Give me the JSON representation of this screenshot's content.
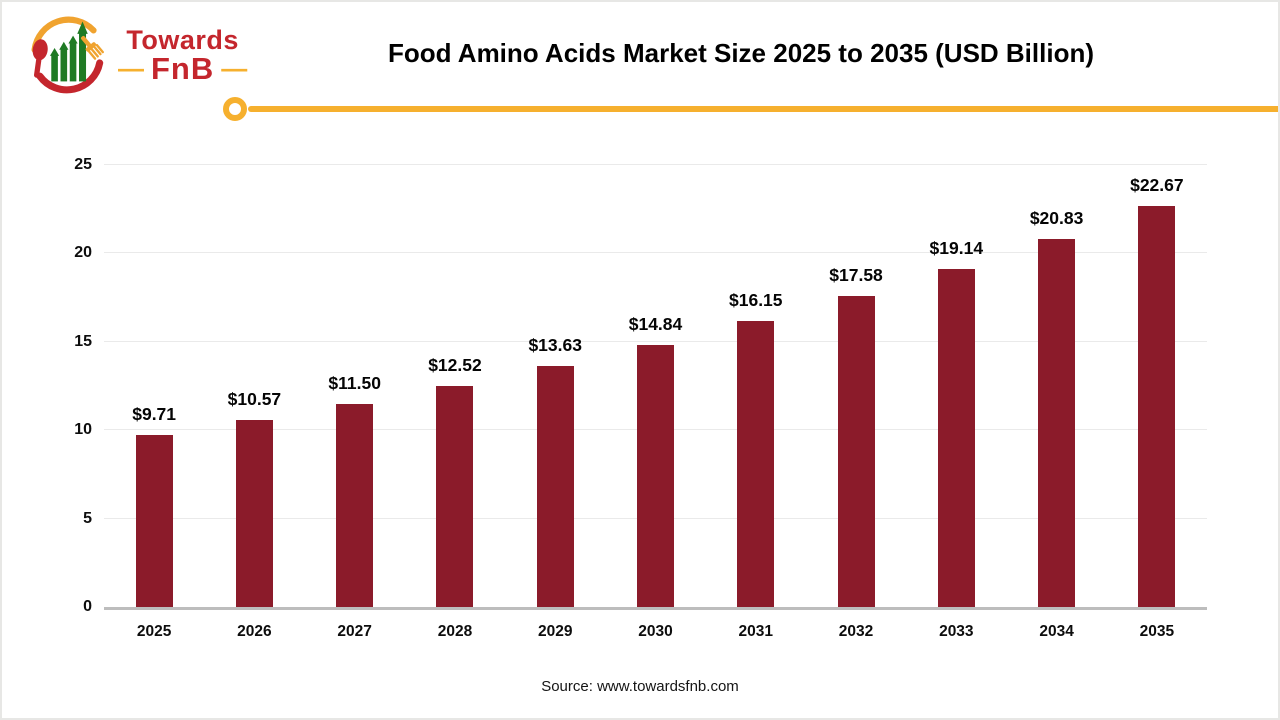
{
  "header": {
    "logo": {
      "brand_line1": "Towards",
      "brand_line2": "FnB",
      "dash_left": "—",
      "dash_right": "—"
    },
    "title": "Food Amino Acids Market Size 2025 to 2035 (USD Billion)"
  },
  "chart_data": {
    "type": "bar",
    "title": "Food Amino Acids Market Size 2025 to 2035 (USD Billion)",
    "categories": [
      "2025",
      "2026",
      "2027",
      "2028",
      "2029",
      "2030",
      "2031",
      "2032",
      "2033",
      "2034",
      "2035"
    ],
    "values": [
      9.71,
      10.57,
      11.5,
      12.52,
      13.63,
      14.84,
      16.15,
      17.58,
      19.14,
      20.83,
      22.67
    ],
    "labels": [
      "$9.71",
      "$10.57",
      "$11.50",
      "$12.52",
      "$13.63",
      "$14.84",
      "$16.15",
      "$17.58",
      "$19.14",
      "$20.83",
      "$22.67"
    ],
    "xlabel": "",
    "ylabel": "",
    "ylim": [
      0,
      25
    ],
    "yticks": [
      0,
      5,
      10,
      15,
      20,
      25
    ],
    "grid": true,
    "legend": false,
    "bar_color": "#8b1b2a"
  },
  "footer": {
    "source": "Source: www.towardsfnb.com"
  },
  "colors": {
    "bar_maroon": "#8b1b2a",
    "accent_yellow": "#f6b02e",
    "logo_red": "#c4262d",
    "logo_green": "#1f7a24",
    "logo_fork_yellow": "#f0a32f",
    "axis_line_gray": "#bdbdbd",
    "gridline_gray": "#eaeaea"
  }
}
